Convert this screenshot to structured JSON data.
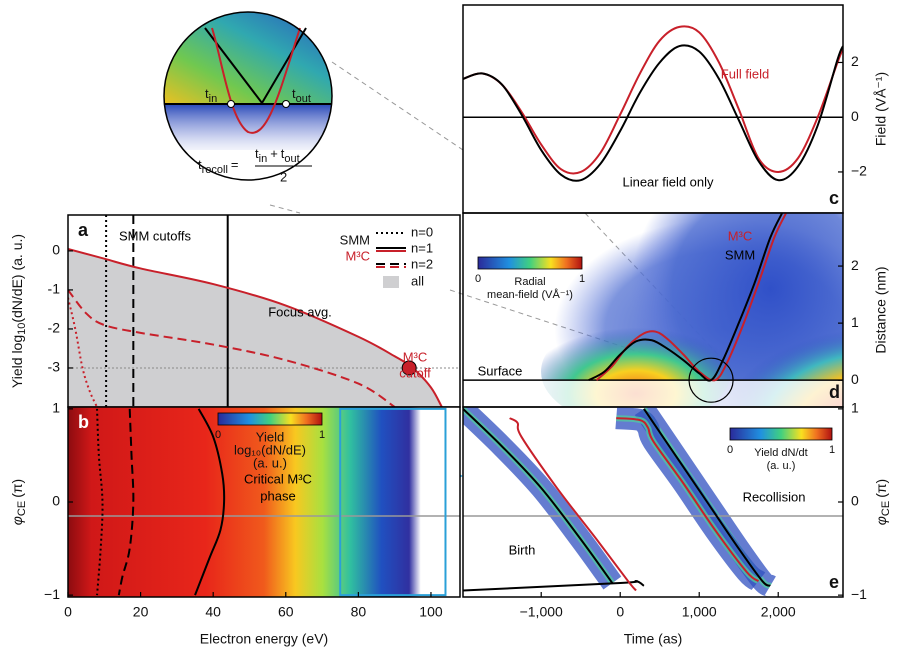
{
  "chart_data": [
    {
      "type": "line",
      "label": "a",
      "ylabel": {
        "text": "Yield log",
        "sub": "10",
        "rest": "(dN/dE) (a. u.)"
      },
      "xlim": [
        0,
        108
      ],
      "ylim": [
        -4,
        0.92
      ],
      "yticks": [
        0,
        -1,
        -2,
        -3
      ],
      "legend": {
        "models": [
          "SMM",
          "M³C"
        ],
        "orders": [
          "n=0",
          "n=1",
          "n=2"
        ],
        "all": "all",
        "fill": "#cfcfd1"
      },
      "annotations": [
        "SMM cutoffs",
        "Focus avg.",
        "M³C",
        "cutoff"
      ],
      "series": [
        {
          "color": "#c8202a",
          "dash": "solid",
          "fill": "#cfcfd1",
          "x": [
            0,
            10,
            20,
            40,
            60,
            80,
            90,
            95,
            100,
            103
          ],
          "values": [
            0.05,
            -0.2,
            -0.45,
            -0.85,
            -1.4,
            -2.2,
            -2.7,
            -3.0,
            -3.5,
            -4
          ]
        },
        {
          "color": "#c8202a",
          "dash": "dash",
          "x": [
            0,
            5,
            10,
            20,
            40,
            60,
            80,
            90
          ],
          "values": [
            -1,
            -1.6,
            -1.9,
            -2.1,
            -2.4,
            -2.8,
            -3.4,
            -4
          ]
        },
        {
          "color": "#c8202a",
          "dash": "dot",
          "x": [
            0,
            2,
            4,
            6,
            8
          ],
          "values": [
            -1.2,
            -2,
            -3,
            -3.6,
            -4
          ]
        }
      ],
      "cutoffs": {
        "x": [
          10.5,
          44,
          18
        ],
        "dash": [
          "dot",
          "solid",
          "dash"
        ],
        "color": "#000000"
      },
      "marker": {
        "x": 94,
        "value": -3,
        "color": "#c8202a"
      },
      "reference_line": -3
    },
    {
      "type": "heatmap",
      "label": "b",
      "xlabel": "Electron energy (eV)",
      "ylabel": {
        "symbol": "φ",
        "sub": "CE",
        "unit": "(π)"
      },
      "xlim": [
        0,
        108
      ],
      "xticks": [
        0,
        20,
        40,
        60,
        80,
        100
      ],
      "ylim": [
        -1.02,
        1.02
      ],
      "yticks": [
        1,
        0,
        {
          "value": -1,
          "label": "−1"
        }
      ],
      "colorbar": {
        "ticks": [
          0,
          1
        ],
        "label": [
          "Yield",
          "log₁₀(dN/dE)",
          "(a. u.)"
        ]
      },
      "annotations": [
        "Critical M³C",
        "phase"
      ],
      "phase_line": -0.15,
      "box": {
        "x": [
          75,
          104
        ],
        "y": [
          -1,
          1
        ],
        "color": "#2aa0d8"
      },
      "series": [
        {
          "color": "#000000",
          "dash": "dot",
          "x": [
            8,
            8.5,
            9.5,
            9,
            8
          ],
          "values": [
            1,
            0.5,
            0,
            -0.5,
            -1
          ]
        },
        {
          "color": "#000000",
          "dash": "dash",
          "x": [
            17,
            17.5,
            18,
            17,
            15,
            14
          ],
          "values": [
            1,
            0.5,
            0,
            -0.5,
            -0.8,
            -1
          ]
        },
        {
          "color": "#000000",
          "dash": "solid",
          "x": [
            36,
            40,
            42.5,
            43,
            42,
            39,
            35
          ],
          "values": [
            1,
            0.7,
            0.3,
            0,
            -0.3,
            -0.6,
            -1
          ]
        }
      ]
    },
    {
      "type": "line",
      "label": "c",
      "ylabel": "Field (VÅ⁻¹)",
      "xlim": [
        -1990,
        2820
      ],
      "ylim": [
        -3.5,
        4.1
      ],
      "yticks": [
        2,
        0,
        {
          "value": -2,
          "label": "−2"
        }
      ],
      "series": [
        {
          "name": "Full field",
          "color": "#c8202a",
          "x": [
            -1990,
            -1750,
            -1500,
            -1250,
            -1000,
            -750,
            -500,
            -250,
            0,
            250,
            500,
            750,
            1000,
            1250,
            1500,
            1750,
            2000,
            2250,
            2500,
            2750,
            2820
          ],
          "values": [
            1.4,
            1.6,
            1.2,
            0.2,
            -1.0,
            -1.9,
            -2.0,
            -1.3,
            0.1,
            1.6,
            2.8,
            3.3,
            3.1,
            2.0,
            0.3,
            -1.5,
            -2.0,
            -1.5,
            0.0,
            2.0,
            2.5
          ]
        },
        {
          "name": "Linear field only",
          "color": "#000000",
          "x": [
            -1990,
            -1750,
            -1500,
            -1250,
            -1000,
            -750,
            -500,
            -250,
            0,
            250,
            500,
            750,
            1000,
            1250,
            1500,
            1750,
            2000,
            2250,
            2500,
            2750,
            2820
          ],
          "values": [
            1.4,
            1.6,
            1.2,
            0.1,
            -1.2,
            -2.1,
            -2.3,
            -1.7,
            -0.5,
            0.9,
            2.0,
            2.6,
            2.4,
            1.4,
            -0.1,
            -1.6,
            -2.3,
            -1.8,
            -0.3,
            2.1,
            2.6
          ]
        }
      ]
    },
    {
      "type": "line",
      "label": "d",
      "ylabel": "Distance (nm)",
      "xlim": [
        -1990,
        2820
      ],
      "ylim": [
        -0.47,
        2.93
      ],
      "yticks": [
        0,
        1,
        2
      ],
      "annotations": [
        "Surface"
      ],
      "colorbar": {
        "ticks": [
          0,
          1
        ],
        "label": [
          "Radial",
          "mean-field (VÅ⁻¹)"
        ]
      },
      "series": [
        {
          "name": "M³C",
          "color": "#c8202a",
          "x": [
            -300,
            -100,
            100,
            300,
            450,
            600,
            800,
            1000,
            1200,
            1350,
            1550,
            1750,
            1950,
            2100
          ],
          "values": [
            0,
            0.25,
            0.6,
            0.82,
            0.85,
            0.72,
            0.45,
            0.15,
            0,
            0.3,
            0.95,
            1.7,
            2.5,
            2.93
          ]
        },
        {
          "name": "SMM",
          "color": "#000000",
          "x": [
            -400,
            -200,
            0,
            200,
            400,
            600,
            800,
            1000,
            1150,
            1300,
            1500,
            1700,
            1900,
            2050
          ],
          "values": [
            0,
            0.15,
            0.45,
            0.68,
            0.7,
            0.55,
            0.35,
            0.12,
            0,
            0.35,
            1.0,
            1.7,
            2.5,
            2.93
          ]
        }
      ]
    },
    {
      "type": "line",
      "label": "e",
      "xlabel": "Time (as)",
      "ylabel": {
        "symbol": "φ",
        "sub": "CE",
        "unit": "(π)"
      },
      "xlim": [
        -1990,
        2820
      ],
      "xticks": [
        {
          "value": -1000,
          "label": "−1,000"
        },
        0,
        {
          "value": 1000,
          "label": "1,000"
        },
        {
          "value": 2000,
          "label": "2,000"
        }
      ],
      "ylim": [
        -1.02,
        1.02
      ],
      "yticks": [
        1,
        0,
        {
          "value": -1,
          "label": "−1"
        }
      ],
      "annotations": [
        "Birth",
        "Recollision"
      ],
      "phase_line": -0.15,
      "colorbar": {
        "ticks": [
          0,
          1
        ],
        "label": [
          "Yield dN/dt",
          "(a. u.)"
        ]
      },
      "series": [
        {
          "color": "#000000",
          "x": [
            -1990,
            -1500,
            -1000,
            -500,
            -100
          ],
          "values": [
            1.0,
            0.6,
            0.15,
            -0.4,
            -0.87
          ]
        },
        {
          "color": "#000000",
          "x": [
            -1990,
            0,
            200,
            300
          ],
          "values": [
            -0.95,
            -0.87,
            -0.85,
            -0.9
          ]
        },
        {
          "color": "#c8202a",
          "x": [
            -1400,
            -1300,
            -1250,
            -800,
            -300,
            100,
            200
          ],
          "values": [
            0.9,
            0.85,
            0.7,
            0.15,
            -0.4,
            -0.85,
            -0.95
          ]
        },
        {
          "color": "#c8202a",
          "x": [
            -50,
            250,
            350,
            420,
            800,
            1200,
            1600,
            1750
          ],
          "values": [
            0.9,
            0.88,
            0.8,
            0.65,
            0.2,
            -0.3,
            -0.75,
            -0.85
          ]
        },
        {
          "color": "#000000",
          "x": [
            300,
            700,
            1100,
            1500,
            1800,
            1900
          ],
          "values": [
            1.0,
            0.5,
            0.0,
            -0.5,
            -0.85,
            -0.9
          ]
        }
      ]
    }
  ],
  "inset": {
    "t_in": {
      "base": "t",
      "sub": "in"
    },
    "t_out": {
      "base": "t",
      "sub": "out"
    },
    "t_recoll": {
      "base": "t",
      "sub": "recoll"
    },
    "equals": "=",
    "plus": "+",
    "denominator": "2"
  }
}
